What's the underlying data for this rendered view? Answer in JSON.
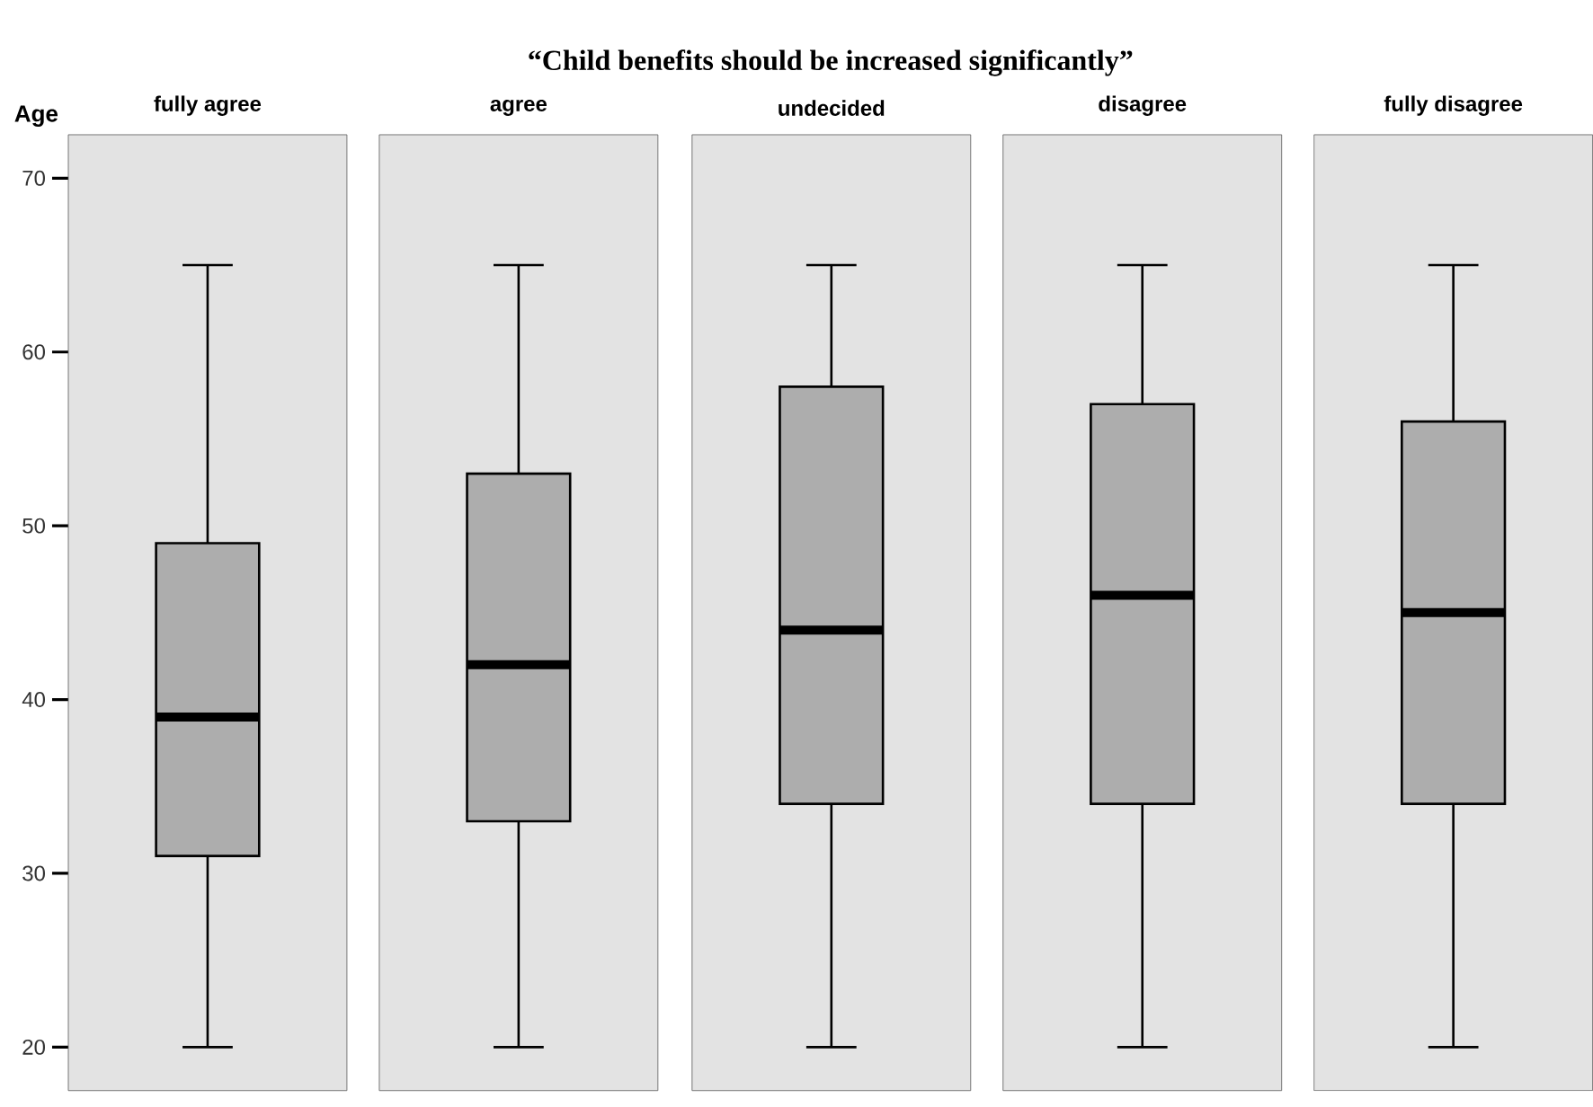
{
  "chart_data": [
    {
      "type": "box",
      "ylabel": "Age",
      "categories": [
        "fully agree"
      ],
      "ylim": [
        17.5,
        72.5
      ],
      "yticks": [
        20,
        30,
        40,
        50,
        60,
        70
      ],
      "series": [
        {
          "color": "#adadad",
          "boxes": [
            {
              "low": 20,
              "q1": 31,
              "median": 39,
              "q3": 49,
              "high": 65
            }
          ]
        }
      ]
    },
    {
      "type": "box",
      "categories": [
        "agree"
      ],
      "ylim": [
        17.5,
        72.5
      ],
      "tick_labels": "x",
      "series": [
        {
          "color": "#adadad",
          "boxes": [
            {
              "low": 20,
              "q1": 33,
              "median": 42,
              "q3": 53,
              "high": 65
            }
          ]
        }
      ]
    },
    {
      "type": "box",
      "title": "“Child benefits should be increased significantly”",
      "categories": [
        "undecided"
      ],
      "ylim": [
        17.5,
        72.5
      ],
      "tick_labels": "x",
      "series": [
        {
          "color": "#adadad",
          "boxes": [
            {
              "low": 20,
              "q1": 34,
              "median": 44,
              "q3": 58,
              "high": 65
            }
          ]
        }
      ]
    },
    {
      "type": "box",
      "categories": [
        "disagree"
      ],
      "ylim": [
        17.5,
        72.5
      ],
      "tick_labels": "x",
      "series": [
        {
          "color": "#adadad",
          "boxes": [
            {
              "low": 20,
              "q1": 34,
              "median": 46,
              "q3": 57,
              "high": 65
            }
          ]
        }
      ]
    },
    {
      "type": "box",
      "categories": [
        "fully disagree"
      ],
      "ylim": [
        17.5,
        72.5
      ],
      "tick_labels": "x",
      "series": [
        {
          "color": "#adadad",
          "boxes": [
            {
              "low": 20,
              "q1": 34,
              "median": 45,
              "q3": 56,
              "high": 65
            }
          ]
        }
      ]
    }
  ]
}
